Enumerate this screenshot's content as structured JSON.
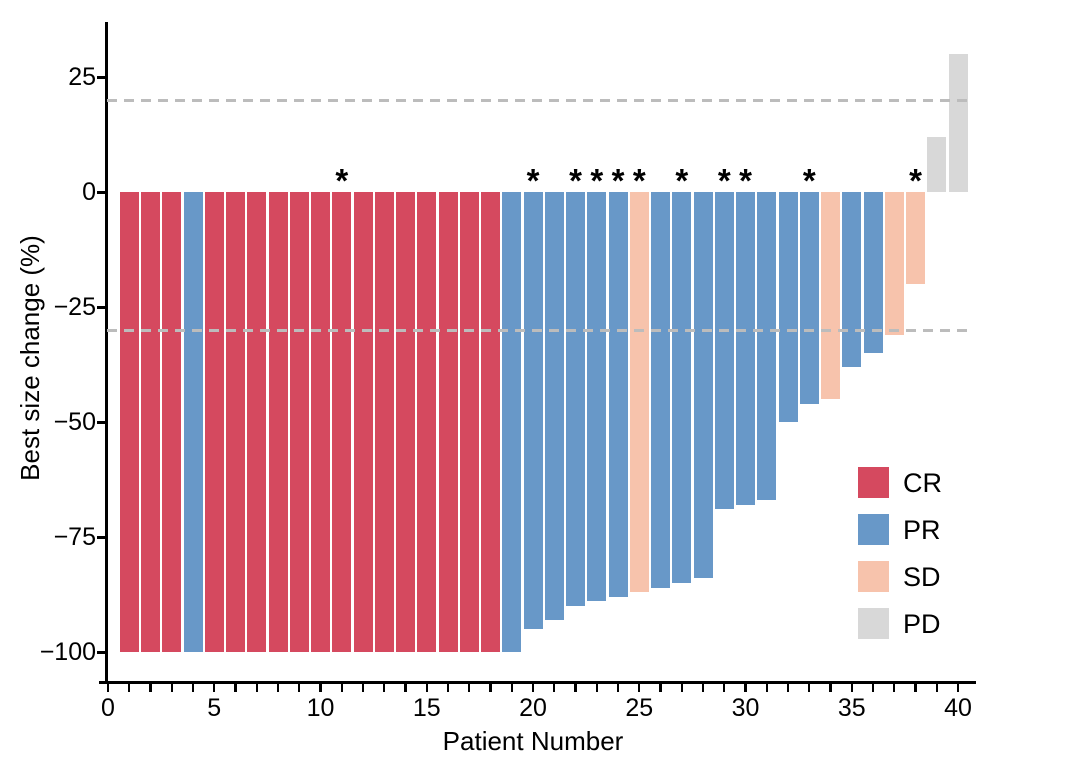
{
  "figure": {
    "background": "#ffffff"
  },
  "axes": {
    "y_title": "Best size change (%)",
    "x_title": "Patient Number",
    "y_ticks": [
      25,
      0,
      -25,
      -50,
      -75,
      -100
    ],
    "y_tick_labels": [
      "25",
      "0",
      "−25",
      "−50",
      "−75",
      "−100"
    ],
    "x_major_ticks": [
      0,
      5,
      10,
      15,
      20,
      25,
      30,
      35,
      40
    ],
    "x_minor_tick_every": 1,
    "x_range": [
      0,
      40
    ],
    "y_range": [
      -105,
      37
    ]
  },
  "legend": {
    "items": [
      {
        "label": "CR",
        "color": "#d5495f"
      },
      {
        "label": "PR",
        "color": "#6898c8"
      },
      {
        "label": "SD",
        "color": "#f7c3ac"
      },
      {
        "label": "PD",
        "color": "#d8d8d8"
      }
    ]
  },
  "annotations": {
    "asterisk_symbol": "*",
    "asterisk_patients": [
      11,
      20,
      22,
      23,
      24,
      25,
      27,
      29,
      30,
      33,
      38
    ]
  },
  "chart_data": {
    "type": "bar",
    "subtype": "waterfall",
    "title": "",
    "xlabel": "Patient Number",
    "ylabel": "Best size change (%)",
    "xlim": [
      0,
      41
    ],
    "ylim": [
      -105,
      37
    ],
    "grid": false,
    "legend_position": "inside-right",
    "reference_lines_y": [
      20,
      -30
    ],
    "reference_line_style": "dashed",
    "reference_line_color": "#bcbcbc",
    "colors": {
      "CR": "#d5495f",
      "PR": "#6898c8",
      "SD": "#f7c3ac",
      "PD": "#d8d8d8"
    },
    "points": [
      {
        "patient": 1,
        "value": -100,
        "response": "CR",
        "asterisk": false
      },
      {
        "patient": 2,
        "value": -100,
        "response": "CR",
        "asterisk": false
      },
      {
        "patient": 3,
        "value": -100,
        "response": "CR",
        "asterisk": false
      },
      {
        "patient": 4,
        "value": -100,
        "response": "PR",
        "asterisk": false
      },
      {
        "patient": 5,
        "value": -100,
        "response": "CR",
        "asterisk": false
      },
      {
        "patient": 6,
        "value": -100,
        "response": "CR",
        "asterisk": false
      },
      {
        "patient": 7,
        "value": -100,
        "response": "CR",
        "asterisk": false
      },
      {
        "patient": 8,
        "value": -100,
        "response": "CR",
        "asterisk": false
      },
      {
        "patient": 9,
        "value": -100,
        "response": "CR",
        "asterisk": false
      },
      {
        "patient": 10,
        "value": -100,
        "response": "CR",
        "asterisk": false
      },
      {
        "patient": 11,
        "value": -100,
        "response": "CR",
        "asterisk": true
      },
      {
        "patient": 12,
        "value": -100,
        "response": "CR",
        "asterisk": false
      },
      {
        "patient": 13,
        "value": -100,
        "response": "CR",
        "asterisk": false
      },
      {
        "patient": 14,
        "value": -100,
        "response": "CR",
        "asterisk": false
      },
      {
        "patient": 15,
        "value": -100,
        "response": "CR",
        "asterisk": false
      },
      {
        "patient": 16,
        "value": -100,
        "response": "CR",
        "asterisk": false
      },
      {
        "patient": 17,
        "value": -100,
        "response": "CR",
        "asterisk": false
      },
      {
        "patient": 18,
        "value": -100,
        "response": "CR",
        "asterisk": false
      },
      {
        "patient": 19,
        "value": -100,
        "response": "PR",
        "asterisk": false
      },
      {
        "patient": 20,
        "value": -95,
        "response": "PR",
        "asterisk": true
      },
      {
        "patient": 21,
        "value": -93,
        "response": "PR",
        "asterisk": false
      },
      {
        "patient": 22,
        "value": -90,
        "response": "PR",
        "asterisk": true
      },
      {
        "patient": 23,
        "value": -89,
        "response": "PR",
        "asterisk": true
      },
      {
        "patient": 24,
        "value": -88,
        "response": "PR",
        "asterisk": true
      },
      {
        "patient": 25,
        "value": -87,
        "response": "SD",
        "asterisk": true
      },
      {
        "patient": 26,
        "value": -86,
        "response": "PR",
        "asterisk": false
      },
      {
        "patient": 27,
        "value": -85,
        "response": "PR",
        "asterisk": true
      },
      {
        "patient": 28,
        "value": -84,
        "response": "PR",
        "asterisk": false
      },
      {
        "patient": 29,
        "value": -69,
        "response": "PR",
        "asterisk": true
      },
      {
        "patient": 30,
        "value": -68,
        "response": "PR",
        "asterisk": true
      },
      {
        "patient": 31,
        "value": -67,
        "response": "PR",
        "asterisk": false
      },
      {
        "patient": 32,
        "value": -50,
        "response": "PR",
        "asterisk": false
      },
      {
        "patient": 33,
        "value": -46,
        "response": "PR",
        "asterisk": true
      },
      {
        "patient": 34,
        "value": -45,
        "response": "SD",
        "asterisk": false
      },
      {
        "patient": 35,
        "value": -38,
        "response": "PR",
        "asterisk": false
      },
      {
        "patient": 36,
        "value": -35,
        "response": "PR",
        "asterisk": false
      },
      {
        "patient": 37,
        "value": -31,
        "response": "SD",
        "asterisk": false
      },
      {
        "patient": 38,
        "value": -20,
        "response": "SD",
        "asterisk": true
      },
      {
        "patient": 39,
        "value": 12,
        "response": "PD",
        "asterisk": false
      },
      {
        "patient": 40,
        "value": 30,
        "response": "PD",
        "asterisk": false
      }
    ]
  }
}
